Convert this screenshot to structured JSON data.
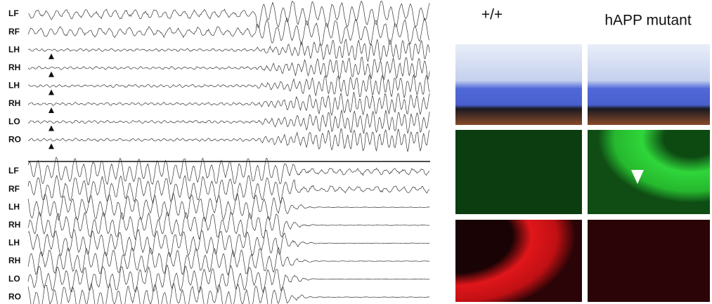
{
  "top_panel": {
    "channels": [
      "LF",
      "RF",
      "LH",
      "RH",
      "LH",
      "RH",
      "LO",
      "RO"
    ]
  },
  "bottom_panel": {
    "channels": [
      "LF",
      "RF",
      "LH",
      "RH",
      "LH",
      "RH",
      "LO",
      "RO"
    ]
  },
  "image_panel": {
    "columns": [
      "+/+",
      "hAPP mutant"
    ]
  }
}
